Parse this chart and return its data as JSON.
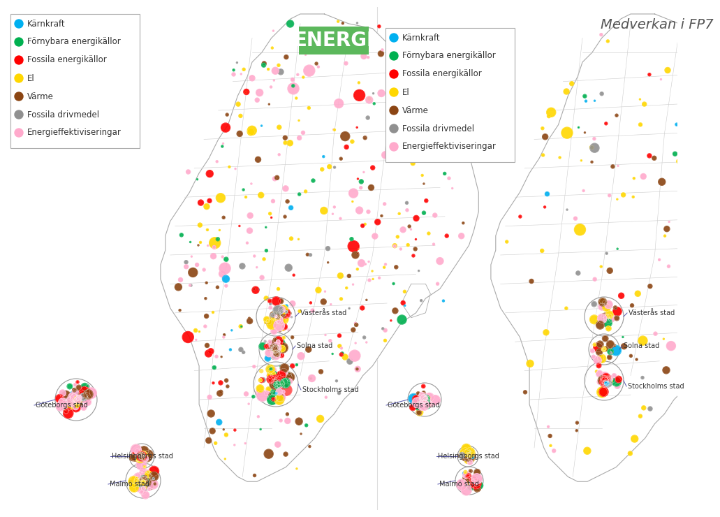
{
  "title": "Medverkan i FP7",
  "banner_text": "ENERGI",
  "banner_color": "#5cb85c",
  "banner_text_color": "white",
  "background_color": "#ffffff",
  "legend_items": [
    {
      "label": "Kärnkraft",
      "color": "#00b0f0"
    },
    {
      "label": "Förnybara energikällor",
      "color": "#00b050"
    },
    {
      "label": "Fossila energikällor",
      "color": "#ff0000"
    },
    {
      "label": "El",
      "color": "#ffd700"
    },
    {
      "label": "Värme",
      "color": "#8B4513"
    },
    {
      "label": "Fossila drivmedel",
      "color": "#909090"
    },
    {
      "label": "Energieffektiviseringar",
      "color": "#ffaacc"
    }
  ],
  "map1": {
    "ox": 75,
    "oy": 10,
    "scale": 690,
    "bubble_count": 400,
    "seed": 42
  },
  "map2": {
    "ox": 548,
    "oy": 10,
    "scale": 690,
    "bubble_count": 120,
    "seed": 77
  }
}
